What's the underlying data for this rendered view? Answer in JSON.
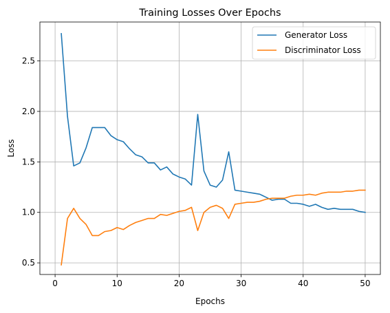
{
  "chart_data": {
    "type": "line",
    "title": "Training Losses Over Epochs",
    "xlabel": "Epochs",
    "ylabel": "Loss",
    "xlim": [
      -2.45,
      52.45
    ],
    "ylim": [
      0.385,
      2.885
    ],
    "xticks": [
      0,
      10,
      20,
      30,
      40,
      50
    ],
    "yticks": [
      0.5,
      1.0,
      1.5,
      2.0,
      2.5
    ],
    "ytick_labels": [
      "0.5",
      "1.0",
      "1.5",
      "2.0",
      "2.5"
    ],
    "grid": true,
    "legend_position": "top-right",
    "x": [
      1,
      2,
      3,
      4,
      5,
      6,
      7,
      8,
      9,
      10,
      11,
      12,
      13,
      14,
      15,
      16,
      17,
      18,
      19,
      20,
      21,
      22,
      23,
      24,
      25,
      26,
      27,
      28,
      29,
      30,
      31,
      32,
      33,
      34,
      35,
      36,
      37,
      38,
      39,
      40,
      41,
      42,
      43,
      44,
      45,
      46,
      47,
      48,
      49,
      50
    ],
    "series": [
      {
        "name": "Generator Loss",
        "color": "#1f77b4",
        "values": [
          2.77,
          1.95,
          1.46,
          1.49,
          1.64,
          1.84,
          1.84,
          1.84,
          1.76,
          1.72,
          1.7,
          1.63,
          1.57,
          1.55,
          1.49,
          1.49,
          1.42,
          1.45,
          1.38,
          1.35,
          1.33,
          1.27,
          1.97,
          1.41,
          1.27,
          1.25,
          1.32,
          1.6,
          1.22,
          1.21,
          1.2,
          1.19,
          1.18,
          1.15,
          1.12,
          1.13,
          1.13,
          1.09,
          1.09,
          1.08,
          1.06,
          1.08,
          1.05,
          1.03,
          1.04,
          1.03,
          1.03,
          1.03,
          1.01,
          1.0
        ]
      },
      {
        "name": "Discriminator Loss",
        "color": "#ff7f0e",
        "values": [
          0.48,
          0.94,
          1.04,
          0.94,
          0.88,
          0.77,
          0.77,
          0.81,
          0.82,
          0.85,
          0.83,
          0.87,
          0.9,
          0.92,
          0.94,
          0.94,
          0.98,
          0.97,
          0.99,
          1.01,
          1.02,
          1.05,
          0.82,
          1.0,
          1.05,
          1.07,
          1.04,
          0.94,
          1.08,
          1.09,
          1.1,
          1.1,
          1.11,
          1.13,
          1.14,
          1.14,
          1.14,
          1.16,
          1.17,
          1.17,
          1.18,
          1.17,
          1.19,
          1.2,
          1.2,
          1.2,
          1.21,
          1.21,
          1.22,
          1.22
        ]
      }
    ]
  }
}
